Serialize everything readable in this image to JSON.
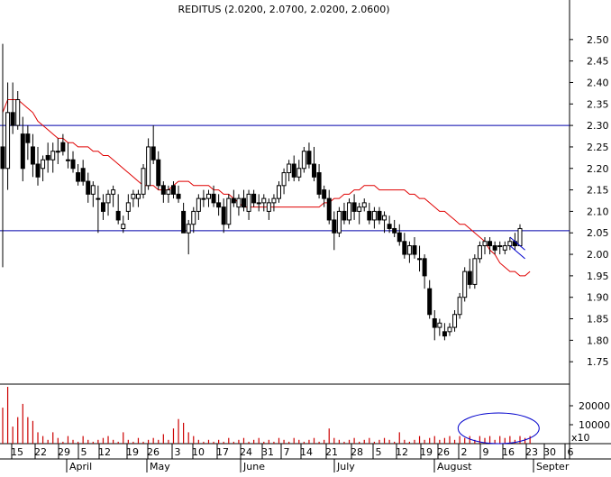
{
  "chart_data": [
    {
      "type": "candlestick",
      "title": "REDITUS (2.0200, 2.0700, 2.0200, 2.0600)",
      "y_ticks": [
        "2.50",
        "2.45",
        "2.40",
        "2.35",
        "2.30",
        "2.25",
        "2.20",
        "2.15",
        "2.10",
        "2.05",
        "2.00",
        "1.95",
        "1.90",
        "1.85",
        "1.80",
        "1.75"
      ],
      "ylim": [
        1.7,
        2.55
      ],
      "x_day_ticks": [
        "15",
        "22",
        "29",
        "5",
        "12",
        "19",
        "26",
        "3",
        "10",
        "17",
        "24",
        "31",
        "7",
        "14",
        "21",
        "28",
        "5",
        "12",
        "19",
        "26",
        "2",
        "9",
        "16",
        "23",
        "30",
        "6"
      ],
      "x_month_labels": [
        "April",
        "May",
        "June",
        "July",
        "August",
        "Septer"
      ],
      "horizontal_lines": [
        2.3,
        2.055
      ],
      "moving_average": [
        2.33,
        2.36,
        2.36,
        2.36,
        2.35,
        2.34,
        2.33,
        2.31,
        2.3,
        2.29,
        2.28,
        2.27,
        2.27,
        2.26,
        2.26,
        2.25,
        2.25,
        2.25,
        2.24,
        2.24,
        2.23,
        2.23,
        2.22,
        2.21,
        2.2,
        2.19,
        2.18,
        2.17,
        2.16,
        2.16,
        2.16,
        2.15,
        2.15,
        2.15,
        2.16,
        2.17,
        2.17,
        2.17,
        2.16,
        2.16,
        2.16,
        2.16,
        2.15,
        2.15,
        2.14,
        2.14,
        2.13,
        2.12,
        2.11,
        2.11,
        2.11,
        2.11,
        2.11,
        2.11,
        2.11,
        2.11,
        2.11,
        2.11,
        2.11,
        2.11,
        2.11,
        2.11,
        2.11,
        2.11,
        2.12,
        2.12,
        2.13,
        2.13,
        2.14,
        2.14,
        2.15,
        2.15,
        2.16,
        2.16,
        2.16,
        2.15,
        2.15,
        2.15,
        2.15,
        2.15,
        2.15,
        2.14,
        2.14,
        2.13,
        2.13,
        2.12,
        2.11,
        2.1,
        2.1,
        2.09,
        2.08,
        2.07,
        2.07,
        2.06,
        2.05,
        2.04,
        2.03,
        2.01,
        2.0,
        1.98,
        1.97,
        1.96,
        1.96,
        1.95,
        1.95,
        1.96
      ],
      "candles": [
        {
          "o": 2.25,
          "h": 2.49,
          "l": 1.97,
          "c": 2.2
        },
        {
          "o": 2.2,
          "h": 2.4,
          "l": 2.15,
          "c": 2.33
        },
        {
          "o": 2.33,
          "h": 2.4,
          "l": 2.28,
          "c": 2.3
        },
        {
          "o": 2.3,
          "h": 2.38,
          "l": 2.29,
          "c": 2.36
        },
        {
          "o": 2.28,
          "h": 2.32,
          "l": 2.17,
          "c": 2.2
        },
        {
          "o": 2.28,
          "h": 2.3,
          "l": 2.22,
          "c": 2.26
        },
        {
          "o": 2.25,
          "h": 2.28,
          "l": 2.18,
          "c": 2.21
        },
        {
          "o": 2.21,
          "h": 2.25,
          "l": 2.16,
          "c": 2.18
        },
        {
          "o": 2.2,
          "h": 2.23,
          "l": 2.17,
          "c": 2.22
        },
        {
          "o": 2.23,
          "h": 2.26,
          "l": 2.19,
          "c": 2.22
        },
        {
          "o": 2.22,
          "h": 2.26,
          "l": 2.19,
          "c": 2.24
        },
        {
          "o": 2.24,
          "h": 2.27,
          "l": 2.21,
          "c": 2.24
        },
        {
          "o": 2.26,
          "h": 2.28,
          "l": 2.23,
          "c": 2.24
        },
        {
          "o": 2.22,
          "h": 2.26,
          "l": 2.2,
          "c": 2.22
        },
        {
          "o": 2.22,
          "h": 2.24,
          "l": 2.19,
          "c": 2.2
        },
        {
          "o": 2.19,
          "h": 2.21,
          "l": 2.16,
          "c": 2.17
        },
        {
          "o": 2.2,
          "h": 2.22,
          "l": 2.16,
          "c": 2.17
        },
        {
          "o": 2.17,
          "h": 2.19,
          "l": 2.12,
          "c": 2.14
        },
        {
          "o": 2.14,
          "h": 2.17,
          "l": 2.11,
          "c": 2.16
        },
        {
          "o": 2.13,
          "h": 2.16,
          "l": 2.05,
          "c": 2.13
        },
        {
          "o": 2.12,
          "h": 2.14,
          "l": 2.08,
          "c": 2.1
        },
        {
          "o": 2.12,
          "h": 2.15,
          "l": 2.09,
          "c": 2.14
        },
        {
          "o": 2.14,
          "h": 2.16,
          "l": 2.11,
          "c": 2.15
        },
        {
          "o": 2.1,
          "h": 2.14,
          "l": 2.07,
          "c": 2.08
        },
        {
          "o": 2.06,
          "h": 2.09,
          "l": 2.05,
          "c": 2.07
        },
        {
          "o": 2.1,
          "h": 2.14,
          "l": 2.08,
          "c": 2.12
        },
        {
          "o": 2.13,
          "h": 2.15,
          "l": 2.11,
          "c": 2.14
        },
        {
          "o": 2.13,
          "h": 2.15,
          "l": 2.11,
          "c": 2.14
        },
        {
          "o": 2.14,
          "h": 2.21,
          "l": 2.13,
          "c": 2.2
        },
        {
          "o": 2.16,
          "h": 2.27,
          "l": 2.15,
          "c": 2.25
        },
        {
          "o": 2.25,
          "h": 2.3,
          "l": 2.21,
          "c": 2.22
        },
        {
          "o": 2.22,
          "h": 2.24,
          "l": 2.15,
          "c": 2.16
        },
        {
          "o": 2.16,
          "h": 2.17,
          "l": 2.12,
          "c": 2.14
        },
        {
          "o": 2.14,
          "h": 2.16,
          "l": 2.12,
          "c": 2.15
        },
        {
          "o": 2.16,
          "h": 2.17,
          "l": 2.13,
          "c": 2.14
        },
        {
          "o": 2.14,
          "h": 2.16,
          "l": 2.12,
          "c": 2.13
        },
        {
          "o": 2.1,
          "h": 2.12,
          "l": 2.05,
          "c": 2.05
        },
        {
          "o": 2.05,
          "h": 2.08,
          "l": 2.0,
          "c": 2.07
        },
        {
          "o": 2.07,
          "h": 2.11,
          "l": 2.05,
          "c": 2.1
        },
        {
          "o": 2.1,
          "h": 2.14,
          "l": 2.08,
          "c": 2.13
        },
        {
          "o": 2.13,
          "h": 2.15,
          "l": 2.11,
          "c": 2.13
        },
        {
          "o": 2.13,
          "h": 2.15,
          "l": 2.11,
          "c": 2.14
        },
        {
          "o": 2.14,
          "h": 2.16,
          "l": 2.11,
          "c": 2.12
        },
        {
          "o": 2.12,
          "h": 2.14,
          "l": 2.09,
          "c": 2.11
        },
        {
          "o": 2.11,
          "h": 2.13,
          "l": 2.05,
          "c": 2.07
        },
        {
          "o": 2.07,
          "h": 2.14,
          "l": 2.06,
          "c": 2.13
        },
        {
          "o": 2.13,
          "h": 2.15,
          "l": 2.11,
          "c": 2.12
        },
        {
          "o": 2.11,
          "h": 2.14,
          "l": 2.09,
          "c": 2.13
        },
        {
          "o": 2.13,
          "h": 2.15,
          "l": 2.1,
          "c": 2.11
        },
        {
          "o": 2.1,
          "h": 2.15,
          "l": 2.08,
          "c": 2.14
        },
        {
          "o": 2.14,
          "h": 2.15,
          "l": 2.11,
          "c": 2.12
        },
        {
          "o": 2.12,
          "h": 2.14,
          "l": 2.1,
          "c": 2.12
        },
        {
          "o": 2.12,
          "h": 2.14,
          "l": 2.1,
          "c": 2.13
        },
        {
          "o": 2.1,
          "h": 2.13,
          "l": 2.08,
          "c": 2.12
        },
        {
          "o": 2.12,
          "h": 2.14,
          "l": 2.1,
          "c": 2.13
        },
        {
          "o": 2.13,
          "h": 2.17,
          "l": 2.12,
          "c": 2.16
        },
        {
          "o": 2.16,
          "h": 2.2,
          "l": 2.14,
          "c": 2.19
        },
        {
          "o": 2.19,
          "h": 2.22,
          "l": 2.17,
          "c": 2.21
        },
        {
          "o": 2.21,
          "h": 2.23,
          "l": 2.17,
          "c": 2.18
        },
        {
          "o": 2.18,
          "h": 2.22,
          "l": 2.17,
          "c": 2.2
        },
        {
          "o": 2.2,
          "h": 2.25,
          "l": 2.19,
          "c": 2.24
        },
        {
          "o": 2.24,
          "h": 2.26,
          "l": 2.2,
          "c": 2.21
        },
        {
          "o": 2.21,
          "h": 2.25,
          "l": 2.17,
          "c": 2.18
        },
        {
          "o": 2.19,
          "h": 2.21,
          "l": 2.13,
          "c": 2.14
        },
        {
          "o": 2.15,
          "h": 2.16,
          "l": 2.11,
          "c": 2.13
        },
        {
          "o": 2.13,
          "h": 2.15,
          "l": 2.07,
          "c": 2.08
        },
        {
          "o": 2.08,
          "h": 2.1,
          "l": 2.01,
          "c": 2.05
        },
        {
          "o": 2.05,
          "h": 2.11,
          "l": 2.04,
          "c": 2.1
        },
        {
          "o": 2.1,
          "h": 2.12,
          "l": 2.07,
          "c": 2.08
        },
        {
          "o": 2.08,
          "h": 2.13,
          "l": 2.07,
          "c": 2.12
        },
        {
          "o": 2.12,
          "h": 2.14,
          "l": 2.08,
          "c": 2.1
        },
        {
          "o": 2.1,
          "h": 2.12,
          "l": 2.07,
          "c": 2.11
        },
        {
          "o": 2.11,
          "h": 2.13,
          "l": 2.1,
          "c": 2.12
        },
        {
          "o": 2.1,
          "h": 2.12,
          "l": 2.07,
          "c": 2.08
        },
        {
          "o": 2.08,
          "h": 2.11,
          "l": 2.06,
          "c": 2.1
        },
        {
          "o": 2.1,
          "h": 2.11,
          "l": 2.07,
          "c": 2.08
        },
        {
          "o": 2.08,
          "h": 2.1,
          "l": 2.05,
          "c": 2.09
        },
        {
          "o": 2.07,
          "h": 2.09,
          "l": 2.05,
          "c": 2.06
        },
        {
          "o": 2.06,
          "h": 2.08,
          "l": 2.04,
          "c": 2.05
        },
        {
          "o": 2.05,
          "h": 2.07,
          "l": 2.02,
          "c": 2.03
        },
        {
          "o": 2.03,
          "h": 2.05,
          "l": 1.99,
          "c": 2.0
        },
        {
          "o": 2.0,
          "h": 2.03,
          "l": 1.98,
          "c": 2.02
        },
        {
          "o": 2.02,
          "h": 2.04,
          "l": 1.99,
          "c": 2.0
        },
        {
          "o": 1.99,
          "h": 2.02,
          "l": 1.96,
          "c": 1.99
        },
        {
          "o": 1.99,
          "h": 2.0,
          "l": 1.92,
          "c": 1.95
        },
        {
          "o": 1.92,
          "h": 1.94,
          "l": 1.85,
          "c": 1.86
        },
        {
          "o": 1.85,
          "h": 1.87,
          "l": 1.8,
          "c": 1.83
        },
        {
          "o": 1.83,
          "h": 1.85,
          "l": 1.81,
          "c": 1.84
        },
        {
          "o": 1.82,
          "h": 1.84,
          "l": 1.8,
          "c": 1.81
        },
        {
          "o": 1.82,
          "h": 1.84,
          "l": 1.81,
          "c": 1.83
        },
        {
          "o": 1.83,
          "h": 1.87,
          "l": 1.82,
          "c": 1.86
        },
        {
          "o": 1.86,
          "h": 1.91,
          "l": 1.85,
          "c": 1.9
        },
        {
          "o": 1.9,
          "h": 1.97,
          "l": 1.89,
          "c": 1.96
        },
        {
          "o": 1.96,
          "h": 1.99,
          "l": 1.92,
          "c": 1.93
        },
        {
          "o": 1.93,
          "h": 2.0,
          "l": 1.92,
          "c": 1.99
        },
        {
          "o": 1.99,
          "h": 2.03,
          "l": 1.98,
          "c": 2.02
        },
        {
          "o": 2.02,
          "h": 2.04,
          "l": 2.0,
          "c": 2.03
        },
        {
          "o": 2.03,
          "h": 2.04,
          "l": 2.0,
          "c": 2.02
        },
        {
          "o": 2.02,
          "h": 2.03,
          "l": 2.0,
          "c": 2.01
        },
        {
          "o": 2.02,
          "h": 2.03,
          "l": 2.0,
          "c": 2.02
        },
        {
          "o": 2.01,
          "h": 2.03,
          "l": 2.0,
          "c": 2.02
        },
        {
          "o": 2.02,
          "h": 2.04,
          "l": 2.01,
          "c": 2.03
        },
        {
          "o": 2.03,
          "h": 2.05,
          "l": 2.01,
          "c": 2.02
        },
        {
          "o": 2.02,
          "h": 2.07,
          "l": 2.02,
          "c": 2.06
        }
      ],
      "volume_ticks": [
        "20000",
        "10000"
      ],
      "volume_unit": "x10",
      "volume": [
        19000,
        30000,
        9000,
        14000,
        21000,
        14000,
        12000,
        6000,
        4000,
        2000,
        6000,
        3000,
        1000,
        4000,
        2000,
        1000,
        4000,
        2000,
        1000,
        2000,
        3000,
        4000,
        2000,
        1000,
        6000,
        2000,
        1000,
        3000,
        1000,
        2000,
        3000,
        2000,
        5000,
        2000,
        8000,
        13000,
        11000,
        6000,
        4000,
        2000,
        1000,
        2000,
        1000,
        2000,
        1000,
        3000,
        1000,
        2000,
        3000,
        1000,
        2000,
        3000,
        1000,
        2000,
        1000,
        3000,
        2000,
        1000,
        3000,
        2000,
        1000,
        2000,
        3000,
        1000,
        2000,
        8000,
        3000,
        2000,
        1000,
        2000,
        3000,
        1000,
        2000,
        3000,
        1000,
        2000,
        3000,
        2000,
        1000,
        6000,
        2000,
        1000,
        2000,
        4000,
        2000,
        3000,
        4000,
        2000,
        3000,
        4000,
        2000,
        4000,
        3000,
        4000,
        2000,
        4000,
        3000,
        4000,
        2000,
        4000,
        3000,
        4000,
        2000,
        4000,
        3000,
        4000
      ],
      "annotations": [
        {
          "type": "flag",
          "x1": 101,
          "x2": 104,
          "upper": [
            2.04,
            2.01
          ],
          "lower": [
            2.02,
            1.99
          ]
        },
        {
          "type": "circle",
          "region": "volume",
          "x_center": 100
        }
      ]
    }
  ]
}
